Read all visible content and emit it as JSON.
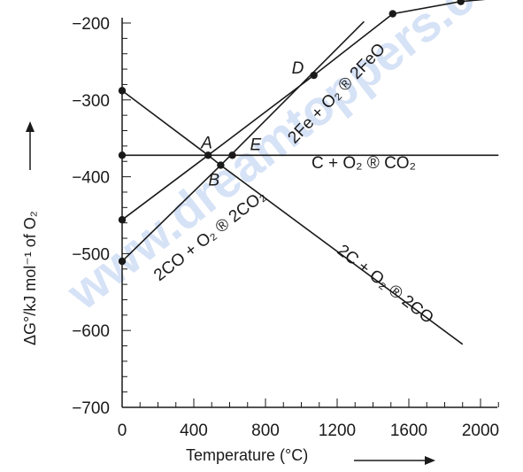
{
  "chart_data": {
    "type": "line",
    "xlabel": "Temperature (°C)",
    "ylabel": "ΔG°/kJ mol⁻¹ of O₂",
    "xlim": [
      0,
      2100
    ],
    "ylim": [
      -700,
      -150
    ],
    "x_ticks": [
      0,
      400,
      800,
      1200,
      1600,
      2000
    ],
    "x_tick_labels": [
      "0",
      "400",
      "800",
      "1200",
      "1600",
      "2000"
    ],
    "y_ticks": [
      -700,
      -600,
      -500,
      -400,
      -300,
      -200
    ],
    "y_tick_labels": [
      "−700",
      "−600",
      "−500",
      "−400",
      "−300",
      "−200"
    ],
    "series": [
      {
        "name": "C + O₂ ® CO₂",
        "x": [
          0,
          2100
        ],
        "y": [
          -372,
          -372
        ]
      },
      {
        "name": "2C + O₂ ® 2CO",
        "x": [
          0,
          480,
          550,
          1900
        ],
        "y": [
          -288,
          -372,
          -385,
          -618
        ]
      },
      {
        "name": "2CO + O₂ ® 2CO₂",
        "x": [
          0,
          550,
          1350
        ],
        "y": [
          -510,
          -385,
          -198
        ]
      },
      {
        "name": "2Fe + O₂ ® 2FeO",
        "x": [
          0,
          480,
          1070,
          1510,
          1890,
          2130
        ],
        "y": [
          -456,
          -372,
          -268,
          -188,
          -172,
          -167
        ]
      }
    ],
    "points": [
      {
        "label": "A",
        "x": 480,
        "y": -372
      },
      {
        "label": "B",
        "x": 550,
        "y": -385
      },
      {
        "label": "D",
        "x": 1070,
        "y": -268
      },
      {
        "label": "E",
        "x": 615,
        "y": -372
      }
    ],
    "markers": [
      {
        "x": 0,
        "y": -288
      },
      {
        "x": 0,
        "y": -372
      },
      {
        "x": 0,
        "y": -456
      },
      {
        "x": 0,
        "y": -510
      },
      {
        "x": 480,
        "y": -372
      },
      {
        "x": 550,
        "y": -385
      },
      {
        "x": 615,
        "y": -372
      },
      {
        "x": 1070,
        "y": -268
      },
      {
        "x": 1510,
        "y": -188
      },
      {
        "x": 1890,
        "y": -172
      }
    ],
    "watermark": "www.dreamtoppers.com"
  }
}
